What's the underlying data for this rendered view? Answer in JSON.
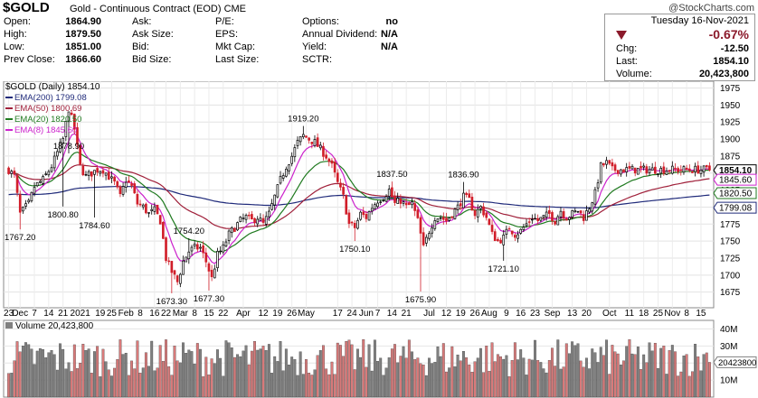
{
  "header": {
    "symbol": "$GOLD",
    "description": "Gold - Continuous Contract (EOD)",
    "exchange": "CME",
    "watermark": "@StockCharts.com"
  },
  "quote": {
    "labels1": [
      "Open:",
      "High:",
      "Low:",
      "Prev Close:"
    ],
    "values1": [
      "1864.90",
      "1879.50",
      "1851.00",
      "1866.60"
    ],
    "labels2": [
      "Ask:",
      "Ask Size:",
      "Bid:",
      "Bid Size:"
    ],
    "labels3": [
      "P/E:",
      "EPS:",
      "Mkt Cap:",
      "Last Size:"
    ],
    "labels4": [
      "Options:",
      "Annual Dividend:",
      "Yield:",
      "SCTR:"
    ],
    "values4": [
      "no",
      "N/A",
      "N/A",
      ""
    ]
  },
  "summary": {
    "date": "Tuesday  16-Nov-2021",
    "pct_change": "-0.67%",
    "chg_label": "Chg:",
    "chg_value": "-12.50",
    "last_label": "Last:",
    "last_value": "1854.10",
    "volume_label": "Volume:",
    "volume_value": "20,423,800",
    "down_color": "#8b1a2b"
  },
  "chart_data": {
    "type": "candlestick",
    "price_title": "$GOLD (Daily) 1854.10",
    "ylim": [
      1652,
      1985
    ],
    "y_ticks": [
      1675,
      1700,
      1725,
      1750,
      1775,
      1800,
      1825,
      1850,
      1875,
      1900,
      1925,
      1950,
      1975
    ],
    "grid": true,
    "legend_position": "top-left",
    "ema_legend": [
      {
        "label": "EMA(200) 1799.08",
        "color": "#1f2a7a"
      },
      {
        "label": "EMA(50) 1800.69",
        "color": "#a0203a"
      },
      {
        "label": "EMA(20) 1820.50",
        "color": "#1f7a1f"
      },
      {
        "label": "EMA(8) 1845.60",
        "color": "#cc22cc"
      }
    ],
    "right_tags": [
      {
        "label": "1854.10",
        "value": 1854.1,
        "color": "#000000",
        "bold": true
      },
      {
        "label": "1845.60",
        "value": 1845.6,
        "color": "#cc22cc",
        "bold": false
      },
      {
        "label": "1820.50",
        "value": 1820.5,
        "color": "#1f7a1f",
        "bold": false
      },
      {
        "label": "1799.08",
        "value": 1799.08,
        "color": "#1f2a7a",
        "bold": false
      }
    ],
    "x_labels": [
      {
        "label": "23",
        "i": 0
      },
      {
        "label": "Dec",
        "i": 4
      },
      {
        "label": "7",
        "i": 9
      },
      {
        "label": "14",
        "i": 14
      },
      {
        "label": "21",
        "i": 19
      },
      {
        "label": "2021",
        "i": 25
      },
      {
        "label": "19",
        "i": 32
      },
      {
        "label": "25",
        "i": 36
      },
      {
        "label": "Feb",
        "i": 41
      },
      {
        "label": "8",
        "i": 46
      },
      {
        "label": "16",
        "i": 51
      },
      {
        "label": "22",
        "i": 55
      },
      {
        "label": "Mar",
        "i": 60
      },
      {
        "label": "8",
        "i": 65
      },
      {
        "label": "15",
        "i": 70
      },
      {
        "label": "22",
        "i": 75
      },
      {
        "label": "Apr",
        "i": 82
      },
      {
        "label": "12",
        "i": 89
      },
      {
        "label": "19",
        "i": 94
      },
      {
        "label": "26",
        "i": 99
      },
      {
        "label": "May",
        "i": 104
      },
      {
        "label": "17",
        "i": 115
      },
      {
        "label": "24",
        "i": 120
      },
      {
        "label": "Jun",
        "i": 125
      },
      {
        "label": "7",
        "i": 129
      },
      {
        "label": "14",
        "i": 134
      },
      {
        "label": "21",
        "i": 139
      },
      {
        "label": "Jul",
        "i": 147
      },
      {
        "label": "12",
        "i": 153
      },
      {
        "label": "19",
        "i": 158
      },
      {
        "label": "26",
        "i": 163
      },
      {
        "label": "Aug",
        "i": 168
      },
      {
        "label": "9",
        "i": 174
      },
      {
        "label": "16",
        "i": 179
      },
      {
        "label": "23",
        "i": 184
      },
      {
        "label": "Sep",
        "i": 190
      },
      {
        "label": "13",
        "i": 197
      },
      {
        "label": "20",
        "i": 202
      },
      {
        "label": "Oct",
        "i": 210
      },
      {
        "label": "11",
        "i": 217
      },
      {
        "label": "18",
        "i": 222
      },
      {
        "label": "25",
        "i": 227
      },
      {
        "label": "Nov",
        "i": 232
      },
      {
        "label": "8",
        "i": 237
      },
      {
        "label": "15",
        "i": 242
      }
    ],
    "annotations": [
      {
        "label": "1767.20",
        "i": 4,
        "value": 1767.2,
        "pos": "below"
      },
      {
        "label": "1878.90",
        "i": 21,
        "value": 1878.9,
        "pos": "above"
      },
      {
        "label": "1800.80",
        "i": 19,
        "value": 1800.8,
        "pos": "below"
      },
      {
        "label": "1784.60",
        "i": 30,
        "value": 1784.6,
        "pos": "below"
      },
      {
        "label": "1673.30",
        "i": 57,
        "value": 1673.3,
        "pos": "below"
      },
      {
        "label": "1754.20",
        "i": 63,
        "value": 1754.2,
        "pos": "above"
      },
      {
        "label": "1677.30",
        "i": 70,
        "value": 1677.3,
        "pos": "below"
      },
      {
        "label": "1919.20",
        "i": 103,
        "value": 1919.2,
        "pos": "above"
      },
      {
        "label": "1750.10",
        "i": 121,
        "value": 1750.1,
        "pos": "below"
      },
      {
        "label": "1837.50",
        "i": 134,
        "value": 1837.5,
        "pos": "above"
      },
      {
        "label": "1675.90",
        "i": 144,
        "value": 1675.9,
        "pos": "below"
      },
      {
        "label": "1836.90",
        "i": 159,
        "value": 1836.9,
        "pos": "above"
      },
      {
        "label": "1721.10",
        "i": 173,
        "value": 1721.1,
        "pos": "below"
      }
    ],
    "anchors": [
      [
        0,
        1855
      ],
      [
        2,
        1845
      ],
      [
        4,
        1790
      ],
      [
        7,
        1805
      ],
      [
        9,
        1830
      ],
      [
        12,
        1840
      ],
      [
        15,
        1860
      ],
      [
        17,
        1880
      ],
      [
        19,
        1900
      ],
      [
        21,
        1945
      ],
      [
        23,
        1915
      ],
      [
        25,
        1860
      ],
      [
        27,
        1845
      ],
      [
        29,
        1850
      ],
      [
        31,
        1855
      ],
      [
        33,
        1855
      ],
      [
        35,
        1845
      ],
      [
        37,
        1835
      ],
      [
        39,
        1815
      ],
      [
        41,
        1840
      ],
      [
        43,
        1830
      ],
      [
        45,
        1805
      ],
      [
        47,
        1800
      ],
      [
        49,
        1790
      ],
      [
        51,
        1795
      ],
      [
        53,
        1780
      ],
      [
        55,
        1725
      ],
      [
        57,
        1705
      ],
      [
        59,
        1690
      ],
      [
        61,
        1720
      ],
      [
        63,
        1735
      ],
      [
        65,
        1740
      ],
      [
        67,
        1740
      ],
      [
        69,
        1720
      ],
      [
        71,
        1695
      ],
      [
        73,
        1730
      ],
      [
        75,
        1740
      ],
      [
        77,
        1760
      ],
      [
        79,
        1770
      ],
      [
        81,
        1780
      ],
      [
        83,
        1785
      ],
      [
        85,
        1780
      ],
      [
        87,
        1785
      ],
      [
        89,
        1775
      ],
      [
        91,
        1790
      ],
      [
        93,
        1815
      ],
      [
        95,
        1840
      ],
      [
        97,
        1860
      ],
      [
        99,
        1875
      ],
      [
        101,
        1895
      ],
      [
        103,
        1905
      ],
      [
        105,
        1900
      ],
      [
        107,
        1895
      ],
      [
        109,
        1885
      ],
      [
        111,
        1875
      ],
      [
        113,
        1860
      ],
      [
        115,
        1835
      ],
      [
        117,
        1815
      ],
      [
        119,
        1775
      ],
      [
        121,
        1770
      ],
      [
        123,
        1790
      ],
      [
        125,
        1785
      ],
      [
        127,
        1800
      ],
      [
        129,
        1810
      ],
      [
        131,
        1815
      ],
      [
        133,
        1825
      ],
      [
        135,
        1805
      ],
      [
        137,
        1810
      ],
      [
        139,
        1800
      ],
      [
        141,
        1805
      ],
      [
        143,
        1780
      ],
      [
        145,
        1740
      ],
      [
        147,
        1765
      ],
      [
        149,
        1785
      ],
      [
        151,
        1785
      ],
      [
        153,
        1780
      ],
      [
        155,
        1790
      ],
      [
        157,
        1800
      ],
      [
        159,
        1815
      ],
      [
        161,
        1810
      ],
      [
        163,
        1790
      ],
      [
        165,
        1800
      ],
      [
        167,
        1785
      ],
      [
        169,
        1760
      ],
      [
        171,
        1750
      ],
      [
        173,
        1755
      ],
      [
        175,
        1770
      ],
      [
        177,
        1760
      ],
      [
        179,
        1765
      ],
      [
        181,
        1775
      ],
      [
        183,
        1785
      ],
      [
        185,
        1780
      ],
      [
        187,
        1785
      ],
      [
        189,
        1790
      ],
      [
        191,
        1780
      ],
      [
        193,
        1795
      ],
      [
        195,
        1785
      ],
      [
        197,
        1790
      ],
      [
        199,
        1795
      ],
      [
        201,
        1785
      ],
      [
        203,
        1800
      ],
      [
        205,
        1820
      ],
      [
        207,
        1860
      ],
      [
        209,
        1865
      ],
      [
        211,
        1855
      ]
    ],
    "volume": {
      "title": "Volume 20,423,800",
      "ticks": [
        {
          "label": "40M",
          "value": 40000000
        },
        {
          "label": "30M",
          "value": 30000000
        },
        {
          "label": "20M",
          "value": 20000000
        },
        {
          "label": "10M",
          "value": 10000000
        }
      ],
      "last_tag": "20423800",
      "ylim": [
        0,
        45000000
      ]
    },
    "colors": {
      "up": "#000000",
      "down": "#d11f2a",
      "vol_up": "#808080",
      "vol_down": "#d87a7a"
    }
  }
}
